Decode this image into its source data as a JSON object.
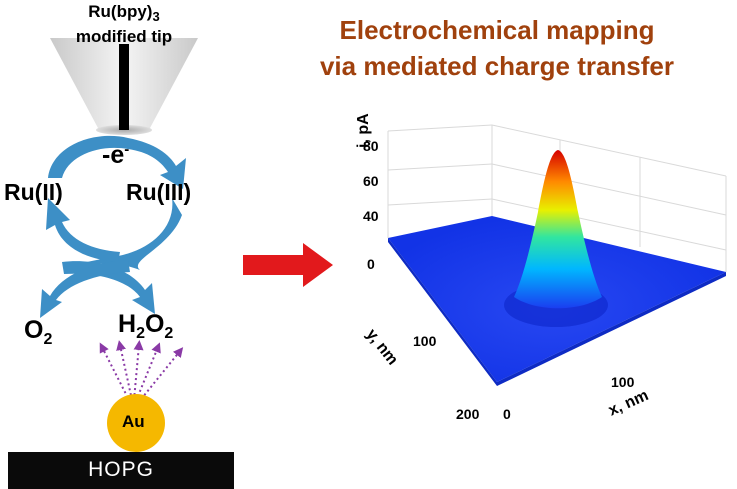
{
  "tip": {
    "label_line1": "Ru(bpy)",
    "label_sub": "3",
    "label_line2": "modified tip"
  },
  "title": {
    "line1": "Electrochemical mapping",
    "line2": "via mediated charge transfer"
  },
  "cycle": {
    "electron_base": "-e",
    "electron_sup": "-",
    "ru2": "Ru(II)",
    "ru3": "Ru(III)",
    "o2_base": "O",
    "o2_sub": "2",
    "h2o2_h": "H",
    "h2o2_sub1": "2",
    "h2o2_o": "O",
    "h2o2_sub2": "2"
  },
  "particle": {
    "label": "Au",
    "color": "#f5b800"
  },
  "substrate": {
    "label": "HOPG",
    "color": "#0a0a0a"
  },
  "colors": {
    "title": "#a0410d",
    "arrow_red": "#e2191c",
    "cycle_arrow": "#3d8fc6",
    "diffusion": "#8a3aa6",
    "surface_base": "#1a3ef0"
  },
  "chart_data": {
    "type": "surface",
    "title": "",
    "z_label": "i, pA",
    "x_label": "x, nm",
    "y_label": "y, nm",
    "z_ticks": [
      40,
      60,
      80
    ],
    "x_ticks": [
      0,
      100
    ],
    "y_ticks": [
      0,
      100,
      200
    ],
    "xlim": [
      0,
      200
    ],
    "ylim": [
      0,
      200
    ],
    "zlim": [
      30,
      85
    ],
    "peak": {
      "x": 60,
      "y": 60,
      "z": 80
    },
    "baseline_z": 32,
    "colormap": "jet"
  }
}
